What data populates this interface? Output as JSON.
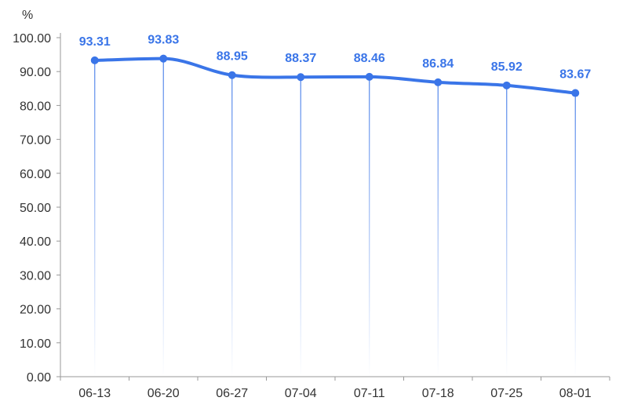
{
  "chart_data": {
    "type": "line",
    "unit": "%",
    "categories": [
      "06-13",
      "06-20",
      "06-27",
      "07-04",
      "07-11",
      "07-18",
      "07-25",
      "08-01"
    ],
    "series": [
      {
        "values": [
          93.31,
          93.83,
          88.95,
          88.37,
          88.46,
          86.84,
          85.92,
          83.67
        ]
      }
    ],
    "y_ticks": [
      "0.00",
      "10.00",
      "20.00",
      "30.00",
      "40.00",
      "50.00",
      "60.00",
      "70.00",
      "80.00",
      "90.00",
      "100.00"
    ],
    "ylim": [
      0,
      100
    ],
    "grid": false,
    "smooth": true,
    "data_labels": true,
    "colors": {
      "line": "#3a75e8",
      "label": "#3a75e8",
      "axis": "#999999",
      "drop_line": "#3a75e8"
    }
  }
}
